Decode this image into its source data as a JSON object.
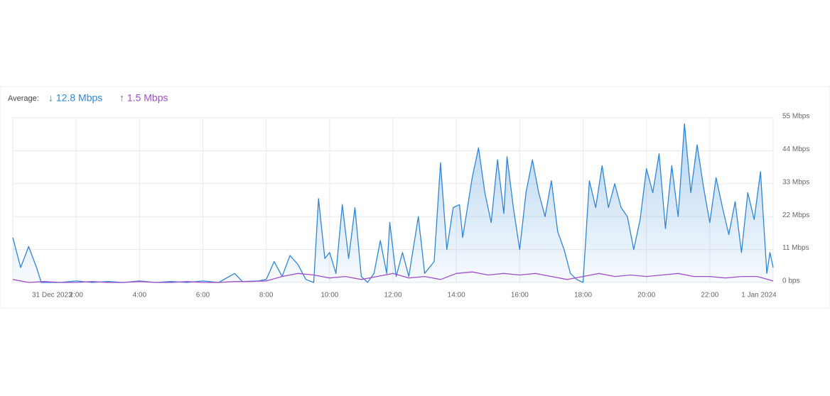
{
  "chart_data": {
    "type": "area",
    "legend_label": "Average:",
    "averages": [
      {
        "label": "↓ 12.8 Mbps",
        "color": "#2f86d6"
      },
      {
        "label": "↑ 1.5 Mbps",
        "color": "#a04fc8"
      }
    ],
    "xlim": [
      0,
      24
    ],
    "xticks": [
      {
        "value": 0,
        "label": "31 Dec 2023"
      },
      {
        "value": 2,
        "label": "2:00"
      },
      {
        "value": 4,
        "label": "4:00"
      },
      {
        "value": 6,
        "label": "6:00"
      },
      {
        "value": 8,
        "label": "8:00"
      },
      {
        "value": 10,
        "label": "10:00"
      },
      {
        "value": 12,
        "label": "12:00"
      },
      {
        "value": 14,
        "label": "14:00"
      },
      {
        "value": 16,
        "label": "16:00"
      },
      {
        "value": 18,
        "label": "18:00"
      },
      {
        "value": 20,
        "label": "20:00"
      },
      {
        "value": 22,
        "label": "22:00"
      },
      {
        "value": 24,
        "label": "1 Jan 2024"
      }
    ],
    "ylim": [
      0,
      55
    ],
    "yticks": [
      {
        "value": 0,
        "label": "0 bps"
      },
      {
        "value": 11,
        "label": "11 Mbps"
      },
      {
        "value": 22,
        "label": "22 Mbps"
      },
      {
        "value": 33,
        "label": "33 Mbps"
      },
      {
        "value": 44,
        "label": "44 Mbps"
      },
      {
        "value": 55,
        "label": "55 Mbps"
      }
    ],
    "grid": true,
    "series": [
      {
        "name": "Download",
        "color": "#2f86d6",
        "fill": true,
        "x": [
          0,
          0.25,
          0.5,
          0.75,
          0.9,
          1.5,
          2,
          2.5,
          3,
          3.5,
          4,
          4.5,
          5,
          5.5,
          6,
          6.5,
          7,
          7.25,
          7.75,
          8,
          8.25,
          8.5,
          8.75,
          9,
          9.25,
          9.5,
          9.65,
          9.85,
          10,
          10.2,
          10.4,
          10.6,
          10.8,
          11,
          11.2,
          11.4,
          11.6,
          11.8,
          11.9,
          12.1,
          12.3,
          12.5,
          12.8,
          13,
          13.3,
          13.5,
          13.7,
          13.9,
          14.1,
          14.2,
          14.5,
          14.7,
          14.9,
          15.1,
          15.3,
          15.5,
          15.6,
          15.8,
          16,
          16.2,
          16.4,
          16.6,
          16.8,
          17,
          17.2,
          17.4,
          17.6,
          17.8,
          18,
          18.2,
          18.4,
          18.6,
          18.8,
          19,
          19.2,
          19.4,
          19.6,
          19.8,
          20,
          20.2,
          20.4,
          20.6,
          20.8,
          21,
          21.2,
          21.4,
          21.6,
          21.8,
          22,
          22.2,
          22.4,
          22.6,
          22.8,
          23,
          23.2,
          23.4,
          23.6,
          23.8,
          23.9,
          24
        ],
        "values": [
          15,
          5,
          12,
          5,
          0,
          0,
          0.5,
          0,
          0.3,
          0,
          0.5,
          0,
          0.3,
          0,
          0.5,
          0,
          3,
          0.3,
          0.5,
          1,
          7,
          2,
          9,
          6,
          1,
          0,
          28,
          8,
          10,
          3,
          26,
          8,
          25,
          2,
          0,
          3,
          14,
          3,
          20,
          2,
          10,
          2,
          22,
          3,
          7,
          40,
          11,
          25,
          26,
          15,
          35,
          45,
          30,
          20,
          41,
          23,
          42,
          25,
          11,
          30,
          41,
          30,
          22,
          34,
          17,
          11,
          3,
          1,
          0,
          34,
          25,
          39,
          25,
          33,
          25,
          22,
          11,
          21,
          38,
          30,
          43,
          18,
          39,
          22,
          53,
          30,
          46,
          32,
          20,
          35,
          25,
          16,
          27,
          10,
          30,
          21,
          37,
          3,
          10,
          5
        ]
      },
      {
        "name": "Upload",
        "color": "#a04fc8",
        "fill": false,
        "x": [
          0,
          0.5,
          1,
          1.5,
          2,
          2.5,
          3,
          3.5,
          4,
          4.5,
          5,
          5.5,
          6,
          6.5,
          7,
          7.5,
          8,
          8.5,
          9,
          9.5,
          10,
          10.5,
          11,
          11.5,
          12,
          12.5,
          13,
          13.5,
          14,
          14.5,
          15,
          15.5,
          16,
          16.5,
          17,
          17.5,
          18,
          18.5,
          19,
          19.5,
          20,
          20.5,
          21,
          21.5,
          22,
          22.5,
          23,
          23.5,
          24
        ],
        "values": [
          1,
          0,
          0.3,
          0,
          0,
          0.3,
          0,
          0,
          0.3,
          0,
          0,
          0.3,
          0,
          0,
          0.3,
          0.3,
          0.5,
          2,
          3,
          2.5,
          1.5,
          2,
          1,
          2,
          3,
          1.5,
          2,
          1,
          3,
          3.5,
          2.5,
          3,
          2.5,
          3,
          2,
          1,
          2,
          3,
          2,
          2.5,
          2,
          2.5,
          3,
          2,
          2,
          1.5,
          2,
          2,
          0.5
        ]
      }
    ]
  }
}
